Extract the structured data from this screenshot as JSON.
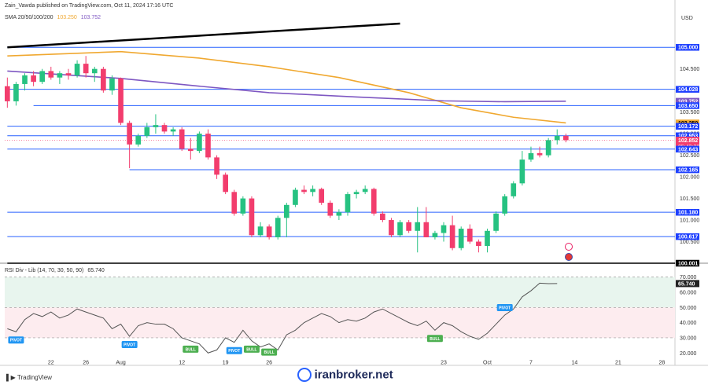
{
  "header": {
    "publisher": "Zain_Vawda published on TradingView.com, Oct 11, 2024 17:16 UTC",
    "sma_label": "SMA 20/50/100/200",
    "sma_values": [
      "103.250",
      "103.752"
    ],
    "sma_colors": [
      "#f0a830",
      "#7e57c2"
    ],
    "currency": "USD"
  },
  "rsi_header": {
    "label": "RSI Div - Lib (14, 70, 30, 50, 90)",
    "value": "65.740"
  },
  "footer": {
    "tv_logo": "TradingView",
    "watermark": "iranbroker.net"
  },
  "colors": {
    "bull": "#26c281",
    "bear": "#f23d6d",
    "level_line": "#2962ff",
    "trend_line": "#000000",
    "sma_orange": "#f0a830",
    "sma_purple": "#7e57c2",
    "rsi_line": "#555555",
    "price_badge": "#f23d6d",
    "pivot_badge": "#2196f3",
    "bull_badge": "#4caf50"
  },
  "chart_data": {
    "type": "candlestick",
    "price_axis": {
      "ticks": [
        "104.500",
        "104.000",
        "103.500",
        "103.000",
        "102.500",
        "102.000",
        "101.500",
        "101.000",
        "100.500"
      ],
      "range": [
        100.0,
        105.55
      ]
    },
    "level_labels": [
      {
        "value": 105.0,
        "text": "105.000",
        "kind": "level"
      },
      {
        "value": 104.028,
        "text": "104.028",
        "kind": "level"
      },
      {
        "value": 103.752,
        "text": "103.752",
        "kind": "sma_purple"
      },
      {
        "value": 103.65,
        "text": "103.650",
        "kind": "level"
      },
      {
        "value": 103.25,
        "text": "103.250",
        "kind": "sma_orange"
      },
      {
        "value": 103.172,
        "text": "103.172",
        "kind": "level"
      },
      {
        "value": 102.953,
        "text": "102.953",
        "kind": "level"
      },
      {
        "value": 102.852,
        "text": "102.852",
        "kind": "price"
      },
      {
        "value": 102.643,
        "text": "102.643",
        "kind": "level"
      },
      {
        "value": 102.165,
        "text": "102.165",
        "kind": "level"
      },
      {
        "value": 101.18,
        "text": "101.180",
        "kind": "level"
      },
      {
        "value": 100.617,
        "text": "100.617",
        "kind": "level"
      },
      {
        "value": 100.001,
        "text": "100.001",
        "kind": "level"
      }
    ],
    "countdown": "05:43:38",
    "horizontal_levels": [
      {
        "value": 105.0,
        "from_day": 0
      },
      {
        "value": 104.028,
        "from_day": 0
      },
      {
        "value": 103.65,
        "from_day": 3
      },
      {
        "value": 103.172,
        "from_day": 0
      },
      {
        "value": 102.953,
        "from_day": 0
      },
      {
        "value": 102.643,
        "from_day": 0
      },
      {
        "value": 102.165,
        "from_day": 14
      },
      {
        "value": 101.18,
        "from_day": 0
      },
      {
        "value": 100.617,
        "from_day": 0
      },
      {
        "value": 100.001,
        "from_day": 0
      }
    ],
    "trend_line": [
      {
        "day": 0,
        "value": 105.0
      },
      {
        "day": 45,
        "value": 105.55
      }
    ],
    "x_axis_labels": [
      {
        "day": 5,
        "text": "22"
      },
      {
        "day": 9,
        "text": "26"
      },
      {
        "day": 13,
        "text": "Aug"
      },
      {
        "day": 20,
        "text": "12"
      },
      {
        "day": 25,
        "text": "19"
      },
      {
        "day": 30,
        "text": "26"
      },
      {
        "day": 50,
        "text": "23"
      },
      {
        "day": 55,
        "text": "Oct"
      },
      {
        "day": 60,
        "text": "7"
      },
      {
        "day": 65,
        "text": "14"
      },
      {
        "day": 70,
        "text": "21"
      },
      {
        "day": 75,
        "text": "28"
      }
    ],
    "day_range": [
      -0.3,
      76.5
    ],
    "candles": [
      {
        "o": 104.1,
        "h": 104.3,
        "l": 103.6,
        "c": 103.75
      },
      {
        "o": 103.75,
        "h": 104.2,
        "l": 103.65,
        "c": 104.15
      },
      {
        "o": 104.15,
        "h": 104.4,
        "l": 104.0,
        "c": 104.35
      },
      {
        "o": 104.35,
        "h": 104.45,
        "l": 104.1,
        "c": 104.2
      },
      {
        "o": 104.2,
        "h": 104.5,
        "l": 104.15,
        "c": 104.45
      },
      {
        "o": 104.45,
        "h": 104.55,
        "l": 104.25,
        "c": 104.3
      },
      {
        "o": 104.3,
        "h": 104.45,
        "l": 104.15,
        "c": 104.4
      },
      {
        "o": 104.4,
        "h": 104.5,
        "l": 104.25,
        "c": 104.35
      },
      {
        "o": 104.35,
        "h": 104.7,
        "l": 104.3,
        "c": 104.62
      },
      {
        "o": 104.62,
        "h": 104.8,
        "l": 104.3,
        "c": 104.4
      },
      {
        "o": 104.4,
        "h": 104.55,
        "l": 104.2,
        "c": 104.5
      },
      {
        "o": 104.5,
        "h": 104.55,
        "l": 103.95,
        "c": 104.0
      },
      {
        "o": 104.0,
        "h": 104.35,
        "l": 103.9,
        "c": 104.28
      },
      {
        "o": 104.28,
        "h": 104.3,
        "l": 103.2,
        "c": 103.25
      },
      {
        "o": 103.25,
        "h": 103.3,
        "l": 102.2,
        "c": 102.75
      },
      {
        "o": 102.75,
        "h": 103.0,
        "l": 102.7,
        "c": 102.95
      },
      {
        "o": 102.95,
        "h": 103.25,
        "l": 102.9,
        "c": 103.15
      },
      {
        "o": 103.15,
        "h": 103.45,
        "l": 103.0,
        "c": 103.2
      },
      {
        "o": 103.2,
        "h": 103.25,
        "l": 103.0,
        "c": 103.05
      },
      {
        "o": 103.05,
        "h": 103.15,
        "l": 102.95,
        "c": 103.1
      },
      {
        "o": 103.1,
        "h": 103.15,
        "l": 102.6,
        "c": 102.65
      },
      {
        "o": 102.65,
        "h": 102.9,
        "l": 102.4,
        "c": 102.6
      },
      {
        "o": 102.6,
        "h": 103.05,
        "l": 102.55,
        "c": 103.0
      },
      {
        "o": 103.0,
        "h": 103.1,
        "l": 102.4,
        "c": 102.45
      },
      {
        "o": 102.45,
        "h": 102.5,
        "l": 101.95,
        "c": 102.05
      },
      {
        "o": 102.05,
        "h": 102.1,
        "l": 101.6,
        "c": 101.65
      },
      {
        "o": 101.65,
        "h": 101.7,
        "l": 101.1,
        "c": 101.15
      },
      {
        "o": 101.15,
        "h": 101.55,
        "l": 101.1,
        "c": 101.5
      },
      {
        "o": 101.5,
        "h": 101.55,
        "l": 100.6,
        "c": 100.65
      },
      {
        "o": 100.65,
        "h": 100.95,
        "l": 100.6,
        "c": 100.85
      },
      {
        "o": 100.85,
        "h": 100.9,
        "l": 100.55,
        "c": 100.6
      },
      {
        "o": 100.6,
        "h": 101.1,
        "l": 100.55,
        "c": 101.05
      },
      {
        "o": 101.05,
        "h": 101.4,
        "l": 100.6,
        "c": 101.35
      },
      {
        "o": 101.35,
        "h": 101.75,
        "l": 101.3,
        "c": 101.7
      },
      {
        "o": 101.7,
        "h": 101.8,
        "l": 101.6,
        "c": 101.65
      },
      {
        "o": 101.65,
        "h": 101.8,
        "l": 101.55,
        "c": 101.72
      },
      {
        "o": 101.72,
        "h": 101.75,
        "l": 101.35,
        "c": 101.4
      },
      {
        "o": 101.4,
        "h": 101.45,
        "l": 101.05,
        "c": 101.1
      },
      {
        "o": 101.1,
        "h": 101.25,
        "l": 101.0,
        "c": 101.18
      },
      {
        "o": 101.18,
        "h": 101.65,
        "l": 101.1,
        "c": 101.6
      },
      {
        "o": 101.6,
        "h": 101.7,
        "l": 101.5,
        "c": 101.65
      },
      {
        "o": 101.65,
        "h": 101.8,
        "l": 101.6,
        "c": 101.72
      },
      {
        "o": 101.72,
        "h": 101.75,
        "l": 101.1,
        "c": 101.15
      },
      {
        "o": 101.15,
        "h": 101.2,
        "l": 100.95,
        "c": 101.0
      },
      {
        "o": 101.0,
        "h": 101.05,
        "l": 100.6,
        "c": 100.65
      },
      {
        "o": 100.65,
        "h": 101.0,
        "l": 100.6,
        "c": 100.95
      },
      {
        "o": 100.95,
        "h": 101.0,
        "l": 100.7,
        "c": 100.75
      },
      {
        "o": 100.75,
        "h": 101.3,
        "l": 100.25,
        "c": 100.95
      },
      {
        "o": 100.95,
        "h": 101.3,
        "l": 100.6,
        "c": 100.6
      },
      {
        "o": 100.6,
        "h": 100.75,
        "l": 100.55,
        "c": 100.7
      },
      {
        "o": 100.7,
        "h": 100.95,
        "l": 100.5,
        "c": 100.88
      },
      {
        "o": 100.88,
        "h": 101.1,
        "l": 100.3,
        "c": 100.35
      },
      {
        "o": 100.35,
        "h": 100.85,
        "l": 100.3,
        "c": 100.8
      },
      {
        "o": 100.8,
        "h": 100.9,
        "l": 100.45,
        "c": 100.5
      },
      {
        "o": 100.5,
        "h": 100.55,
        "l": 100.25,
        "c": 100.4
      },
      {
        "o": 100.4,
        "h": 100.8,
        "l": 100.25,
        "c": 100.75
      },
      {
        "o": 100.75,
        "h": 101.2,
        "l": 100.7,
        "c": 101.15
      },
      {
        "o": 101.15,
        "h": 101.6,
        "l": 101.1,
        "c": 101.55
      },
      {
        "o": 101.55,
        "h": 101.9,
        "l": 101.5,
        "c": 101.85
      },
      {
        "o": 101.85,
        "h": 102.6,
        "l": 101.8,
        "c": 102.4
      },
      {
        "o": 102.4,
        "h": 102.7,
        "l": 102.35,
        "c": 102.55
      },
      {
        "o": 102.55,
        "h": 102.7,
        "l": 102.45,
        "c": 102.5
      },
      {
        "o": 102.5,
        "h": 102.9,
        "l": 102.45,
        "c": 102.85
      },
      {
        "o": 102.85,
        "h": 103.1,
        "l": 102.75,
        "c": 102.95
      },
      {
        "o": 102.95,
        "h": 103.0,
        "l": 102.8,
        "c": 102.85
      }
    ],
    "sma_orange": [
      {
        "day": 0,
        "value": 104.8
      },
      {
        "day": 13,
        "value": 104.9
      },
      {
        "day": 22,
        "value": 104.75
      },
      {
        "day": 30,
        "value": 104.55
      },
      {
        "day": 38,
        "value": 104.3
      },
      {
        "day": 46,
        "value": 103.95
      },
      {
        "day": 52,
        "value": 103.6
      },
      {
        "day": 58,
        "value": 103.38
      },
      {
        "day": 64,
        "value": 103.25
      }
    ],
    "sma_purple": [
      {
        "day": 0,
        "value": 104.45
      },
      {
        "day": 13,
        "value": 104.28
      },
      {
        "day": 22,
        "value": 104.1
      },
      {
        "day": 30,
        "value": 103.95
      },
      {
        "day": 40,
        "value": 103.85
      },
      {
        "day": 50,
        "value": 103.76
      },
      {
        "day": 57,
        "value": 103.74
      },
      {
        "day": 64,
        "value": 103.752
      }
    ],
    "rsi": {
      "ticks": [
        "70.000",
        "60.000",
        "50.000",
        "40.000",
        "30.000",
        "20.000"
      ],
      "range": [
        16,
        75
      ],
      "overbought": 70,
      "oversold": 30,
      "mid": 50,
      "values": [
        36,
        34,
        42,
        46,
        44,
        47,
        43,
        45,
        49,
        47,
        45,
        43,
        36,
        39,
        31,
        38,
        40,
        39,
        39,
        36,
        30,
        28,
        26,
        20,
        22,
        30,
        27,
        35,
        28,
        24,
        26,
        22,
        32,
        35,
        40,
        43,
        46,
        44,
        40,
        42,
        41,
        43,
        47,
        49,
        46,
        43,
        40,
        38,
        41,
        35,
        40,
        38,
        34,
        31,
        29,
        33,
        39,
        45,
        49,
        57,
        61,
        66,
        65.7,
        65.74
      ],
      "badges": [
        {
          "day": 1,
          "text": "PIVOT",
          "kind": "pivot",
          "pos": "below"
        },
        {
          "day": 14,
          "text": "PIVOT",
          "kind": "pivot",
          "pos": "below"
        },
        {
          "day": 21,
          "text": "BULL",
          "kind": "bull",
          "pos": "below"
        },
        {
          "day": 26,
          "text": "PIVOT",
          "kind": "pivot",
          "pos": "below"
        },
        {
          "day": 28,
          "text": "BULL",
          "kind": "bull",
          "pos": "below"
        },
        {
          "day": 30,
          "text": "BULL",
          "kind": "bull",
          "pos": "below"
        },
        {
          "day": 49,
          "text": "BULL",
          "kind": "bull",
          "pos": "below"
        },
        {
          "day": 57,
          "text": "PIVOT",
          "kind": "pivot",
          "pos": "above"
        }
      ]
    }
  }
}
